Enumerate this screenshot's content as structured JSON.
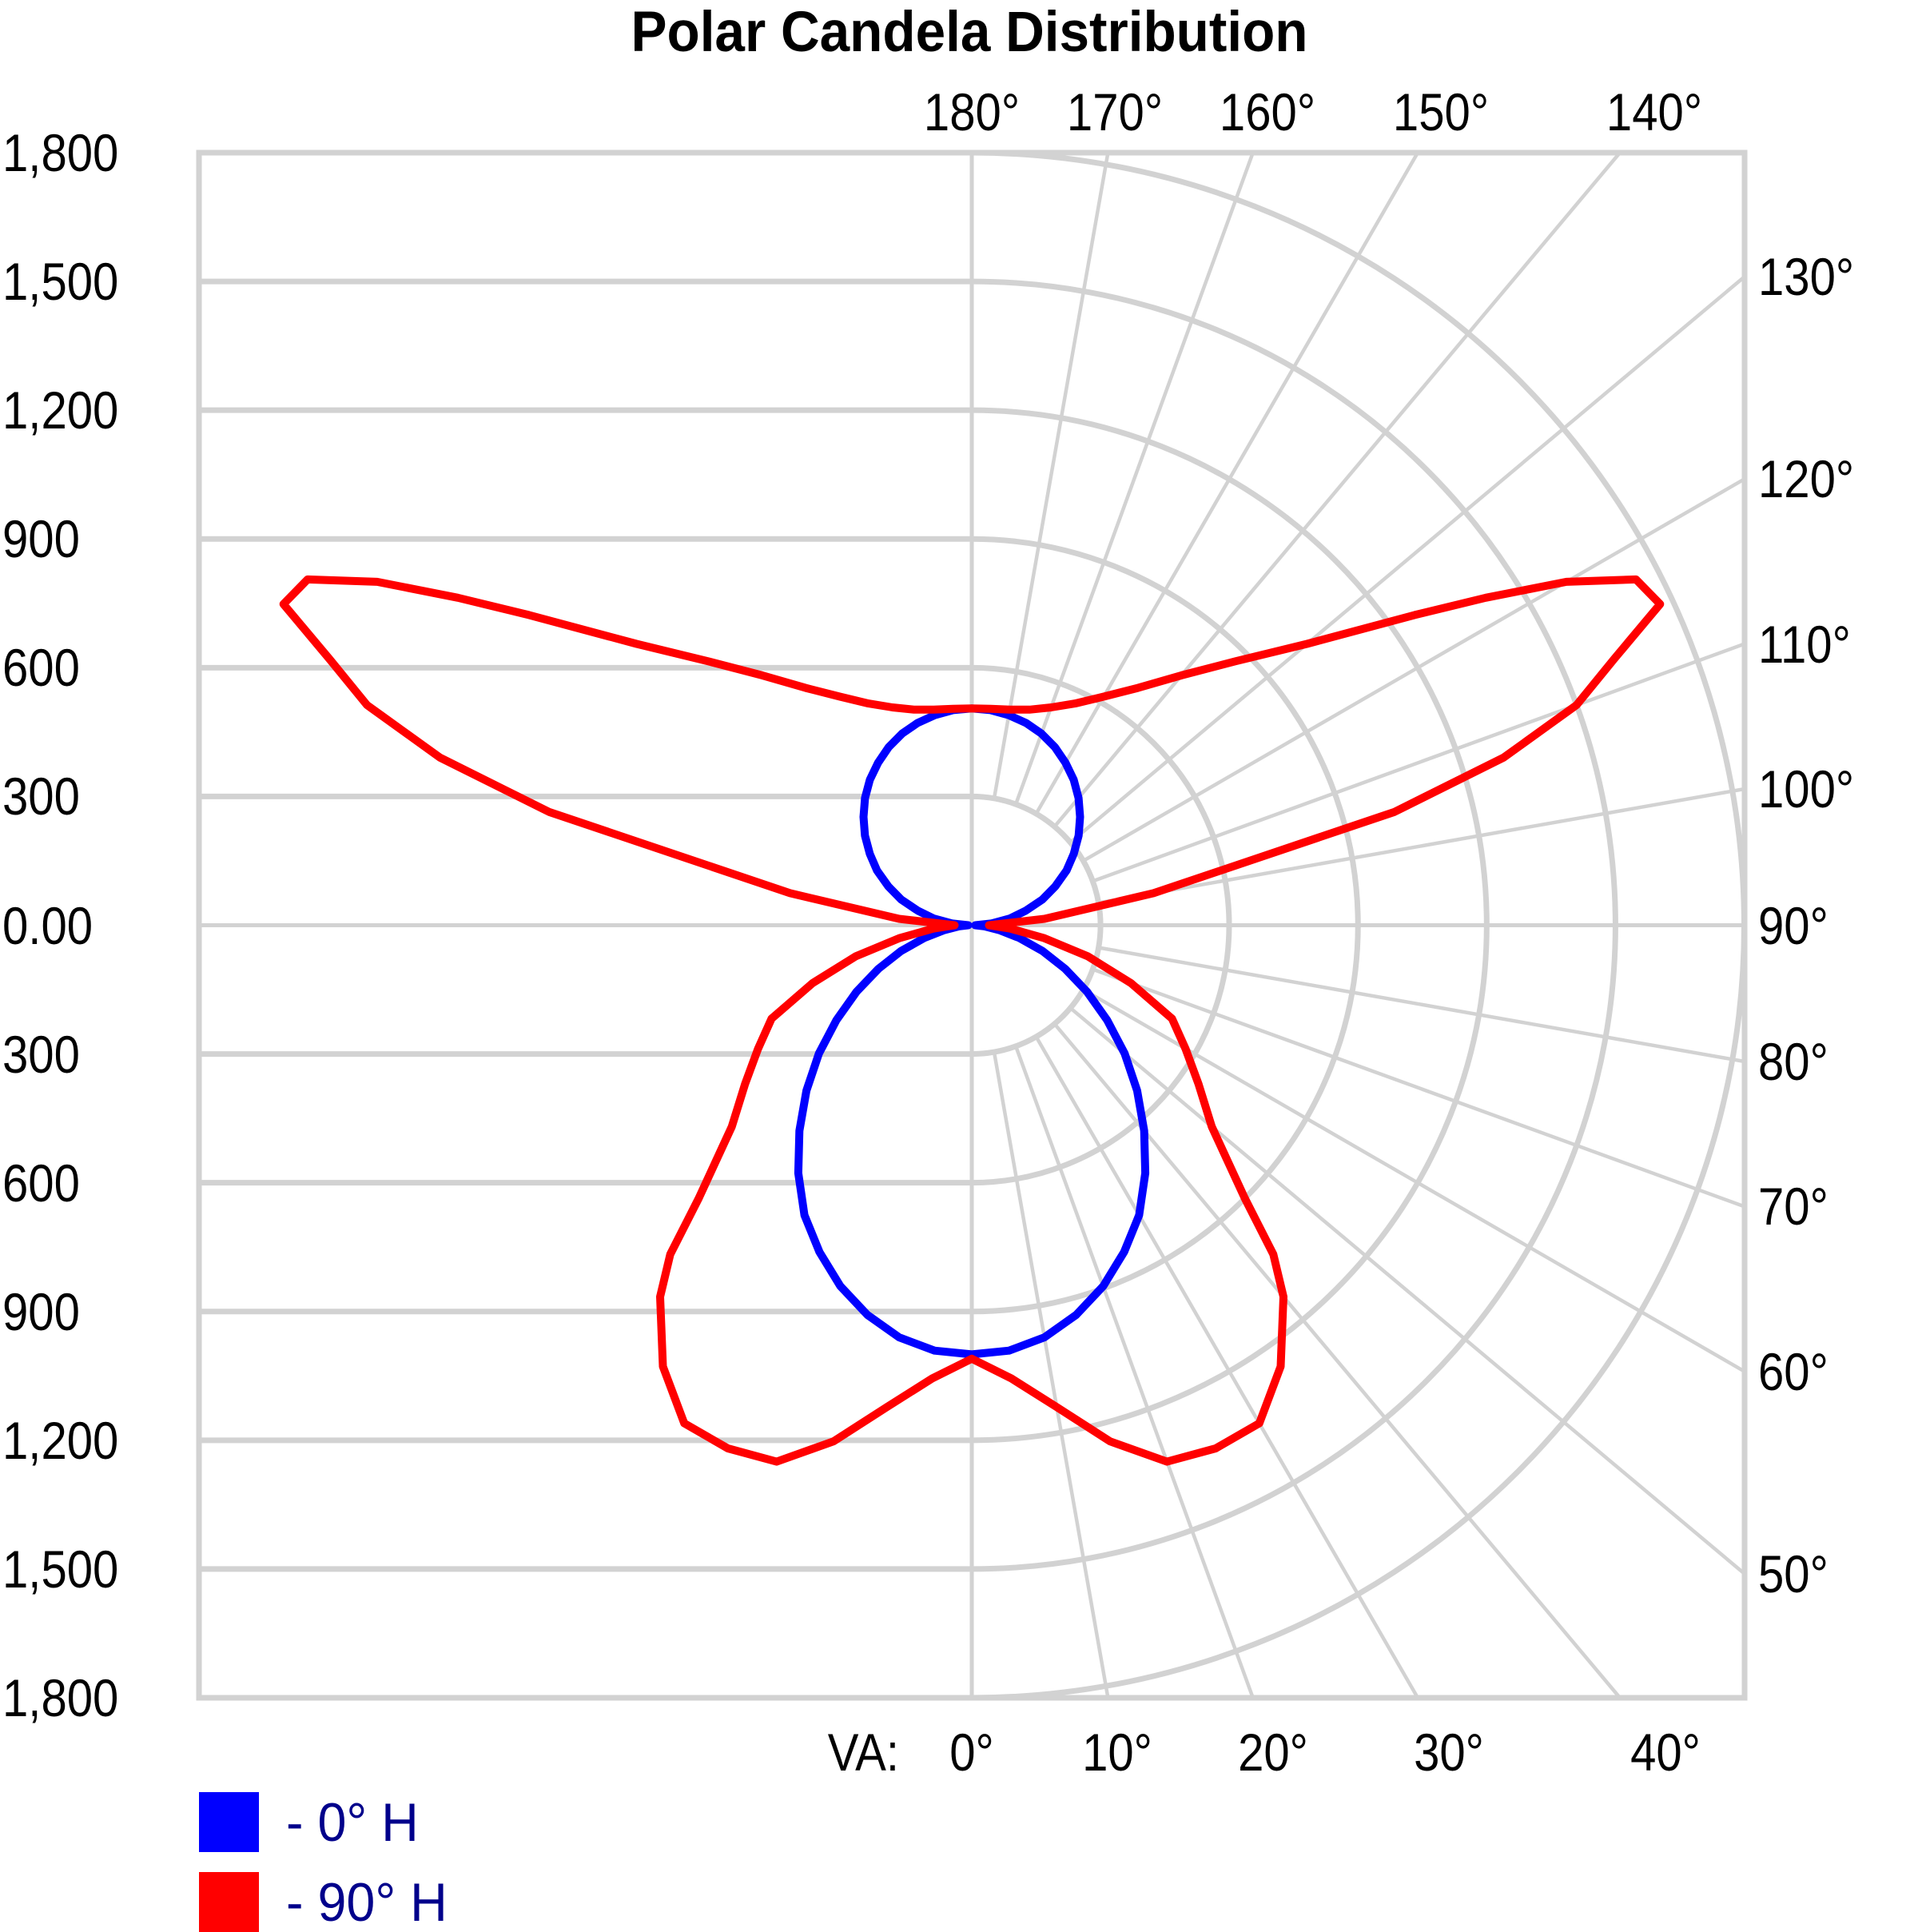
{
  "title": "Polar Candela Distribution",
  "colors": {
    "grid": "#D2D2D2",
    "series_0": "#0000FF",
    "series_90": "#FF0000",
    "legend_text": "#00008B",
    "label_text": "#000000"
  },
  "axes": {
    "radial_tick_labels": [
      "1,800",
      "1,500",
      "1,200",
      "900",
      "600",
      "300",
      "0.00",
      "300",
      "600",
      "900",
      "1,200",
      "1,500",
      "1,800"
    ],
    "top_angle_labels": [
      {
        "angle": 180,
        "label": "180°"
      },
      {
        "angle": 170,
        "label": "170°"
      },
      {
        "angle": 160,
        "label": "160°"
      },
      {
        "angle": 150,
        "label": "150°"
      },
      {
        "angle": 140,
        "label": "140°"
      }
    ],
    "right_angle_labels": [
      {
        "angle": 130,
        "label": "130°"
      },
      {
        "angle": 120,
        "label": "120°"
      },
      {
        "angle": 110,
        "label": "110°"
      },
      {
        "angle": 100,
        "label": "100°"
      },
      {
        "angle": 90,
        "label": "90°"
      },
      {
        "angle": 80,
        "label": "80°"
      },
      {
        "angle": 70,
        "label": "70°"
      },
      {
        "angle": 60,
        "label": "60°"
      },
      {
        "angle": 50,
        "label": "50°"
      }
    ],
    "bottom_axis_prefix": "VA:",
    "bottom_angle_labels": [
      {
        "angle": 0,
        "label": "0°"
      },
      {
        "angle": 10,
        "label": "10°"
      },
      {
        "angle": 20,
        "label": "20°"
      },
      {
        "angle": 30,
        "label": "30°"
      },
      {
        "angle": 40,
        "label": "40°"
      }
    ]
  },
  "legend": [
    {
      "label": "- 0° H",
      "color": "#0000FF"
    },
    {
      "label": "- 90° H",
      "color": "#FF0000"
    }
  ],
  "chart_data": {
    "type": "line",
    "subtype": "polar-candela-distribution",
    "units": "candela",
    "radial_max": 1800,
    "radial_step": 300,
    "angle_step_grid_deg": 10,
    "note": "Vertical angle VA measured from nadir (0° = straight down, 180° = straight up); curves symmetric about the vertical axis; values in candela sampled one-sided.",
    "series": [
      {
        "name": "0° H",
        "color": "#0000FF",
        "points": [
          [
            0,
            1000
          ],
          [
            5,
            995
          ],
          [
            10,
            975
          ],
          [
            15,
            940
          ],
          [
            20,
            895
          ],
          [
            25,
            840
          ],
          [
            30,
            780
          ],
          [
            35,
            705
          ],
          [
            40,
            625
          ],
          [
            45,
            545
          ],
          [
            50,
            465
          ],
          [
            55,
            385
          ],
          [
            60,
            310
          ],
          [
            65,
            240
          ],
          [
            70,
            175
          ],
          [
            75,
            115
          ],
          [
            80,
            65
          ],
          [
            85,
            30
          ],
          [
            90,
            8
          ],
          [
            95,
            45
          ],
          [
            100,
            90
          ],
          [
            105,
            130
          ],
          [
            110,
            175
          ],
          [
            115,
            215
          ],
          [
            120,
            255
          ],
          [
            125,
            290
          ],
          [
            130,
            325
          ],
          [
            135,
            357
          ],
          [
            140,
            387
          ],
          [
            145,
            414
          ],
          [
            150,
            437
          ],
          [
            155,
            458
          ],
          [
            160,
            475
          ],
          [
            165,
            488
          ],
          [
            170,
            497
          ],
          [
            175,
            503
          ],
          [
            180,
            505
          ]
        ]
      },
      {
        "name": "90° H",
        "color": "#FF0000",
        "points": [
          [
            0,
            1010
          ],
          [
            5,
            1060
          ],
          [
            10,
            1140
          ],
          [
            15,
            1245
          ],
          [
            20,
            1330
          ],
          [
            25,
            1345
          ],
          [
            30,
            1340
          ],
          [
            35,
            1255
          ],
          [
            40,
            1130
          ],
          [
            42.5,
            1040
          ],
          [
            45,
            900
          ],
          [
            50,
            730
          ],
          [
            55,
            645
          ],
          [
            60,
            575
          ],
          [
            65,
            515
          ],
          [
            70,
            395
          ],
          [
            75,
            280
          ],
          [
            80,
            170
          ],
          [
            85,
            90
          ],
          [
            90,
            40
          ],
          [
            95,
            170
          ],
          [
            100,
            430
          ],
          [
            105,
            1020
          ],
          [
            107.5,
            1300
          ],
          [
            110,
            1500
          ],
          [
            112.5,
            1620
          ],
          [
            115,
            1770
          ],
          [
            117.5,
            1745
          ],
          [
            120,
            1600
          ],
          [
            122.5,
            1420
          ],
          [
            125,
            1260
          ],
          [
            130,
            1020
          ],
          [
            135,
            870
          ],
          [
            140,
            760
          ],
          [
            145,
            675
          ],
          [
            150,
            615
          ],
          [
            155,
            570
          ],
          [
            160,
            540
          ],
          [
            165,
            520
          ],
          [
            170,
            510
          ],
          [
            175,
            506
          ],
          [
            180,
            505
          ]
        ]
      }
    ]
  }
}
